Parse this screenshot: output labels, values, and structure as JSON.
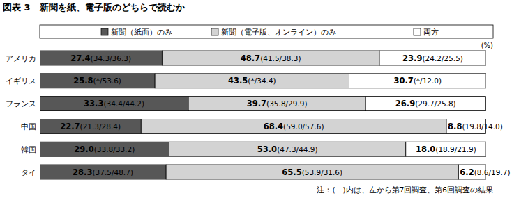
{
  "chart_data": {
    "type": "bar",
    "orientation": "horizontal",
    "stacked": true,
    "data_labels": true,
    "legend": "top",
    "tick_labels": "y",
    "title": "図表 3　新聞を紙、電子版のどちらで読むか",
    "unit": "(%)",
    "note": "注：(　)内は、左から第7回調査、第6回調査の結果",
    "categories": [
      "アメリカ",
      "イギリス",
      "フランス",
      "中国",
      "韓国",
      "タイ"
    ],
    "xlim": [
      0,
      100
    ],
    "series": [
      {
        "name": "新聞（紙面）のみ",
        "color": "#575757",
        "values": [
          27.4,
          25.8,
          33.3,
          22.7,
          29.0,
          28.3
        ],
        "value_labels": [
          "27.4(34.3/36.3)",
          "25.8(*/53.6)",
          "33.3(34.4/44.2)",
          "22.7(21.3/28.4)",
          "29.0(33.8/33.2)",
          "28.3(37.5/48.7)"
        ]
      },
      {
        "name": "新聞（電子版、オンライン）のみ",
        "color": "#d3d3d3",
        "values": [
          48.7,
          43.5,
          39.7,
          68.4,
          53.0,
          65.5
        ],
        "value_labels": [
          "48.7(41.5/38.3)",
          "43.5(*/34.4)",
          "39.7(35.8/29.9)",
          "68.4(59.0/57.6)",
          "53.0(47.3/44.9)",
          "65.5(53.9/31.6)"
        ]
      },
      {
        "name": "両方",
        "color": "#ffffff",
        "values": [
          23.9,
          30.7,
          26.9,
          8.8,
          18.0,
          6.2
        ],
        "value_labels": [
          "23.9(24.2/25.5)",
          "30.7(*/12.0)",
          "26.9(29.7/25.8)",
          "8.8(19.8/14.0)",
          "18.0(18.9/21.9)",
          "6.2(8.6/19.7)"
        ]
      }
    ]
  }
}
